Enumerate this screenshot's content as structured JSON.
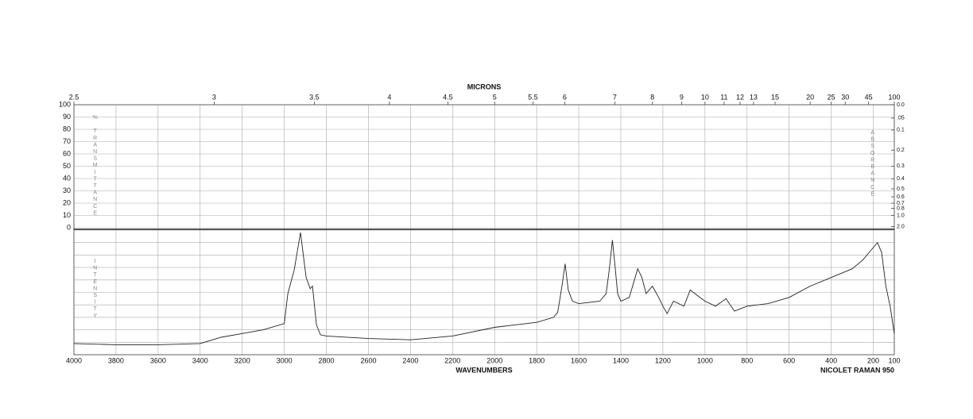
{
  "chart_data": {
    "type": "line",
    "top_axis_label": "MICRONS",
    "x_label": "WAVENUMBERS",
    "annotation": "NICOLET RAMAN 950",
    "y_label": "% TRANSMITTANCE",
    "y2_label": "ABSORBANCE",
    "xlim": [
      4000,
      100
    ],
    "xticks": [
      4000,
      3800,
      3600,
      3400,
      3200,
      3000,
      2800,
      2600,
      2400,
      2200,
      2000,
      1800,
      1600,
      1400,
      1200,
      1000,
      800,
      600,
      400,
      200,
      100
    ],
    "x2lim": [
      2.5,
      100
    ],
    "x2ticks": [
      2.5,
      3,
      3.5,
      4,
      4.5,
      5,
      5.5,
      6,
      7,
      8,
      9,
      10,
      11,
      12,
      13,
      15,
      20,
      25,
      30,
      45,
      100
    ],
    "ylim": [
      0,
      100
    ],
    "yticks": [
      0,
      10,
      20,
      30,
      40,
      50,
      60,
      70,
      80,
      90,
      100
    ],
    "y2lim": [
      0,
      2
    ],
    "y2ticks": [
      {
        "value": 0,
        "label": "0.0"
      },
      {
        "value": 0.05,
        "label": ".05"
      },
      0.1,
      0.2,
      0.3,
      0.4,
      0.5,
      0.6,
      0.7,
      0.8,
      {
        "value": 1,
        "label": "1.0"
      },
      {
        "value": 2,
        "label": "2.0"
      }
    ],
    "grid": true,
    "x": [
      4000,
      3800,
      3600,
      3400,
      3300,
      3200,
      3100,
      3000,
      2983,
      2953,
      2923,
      2896,
      2877,
      2866,
      2847,
      2828,
      2800,
      2600,
      2400,
      2200,
      2000,
      1800,
      1720,
      1700,
      1680,
      1665,
      1650,
      1630,
      1600,
      1500,
      1470,
      1455,
      1440,
      1430,
      1415,
      1400,
      1360,
      1320,
      1300,
      1280,
      1250,
      1220,
      1200,
      1180,
      1150,
      1100,
      1070,
      1040,
      1000,
      950,
      900,
      860,
      800,
      700,
      600,
      500,
      400,
      300,
      250,
      200,
      180,
      160,
      140,
      120,
      100
    ],
    "series": [
      {
        "name": "INTENSITY",
        "color": "#222222",
        "ylim": [
          0,
          100
        ],
        "values": [
          9,
          8,
          8,
          9,
          14,
          17,
          20,
          25,
          49,
          68,
          98,
          62,
          53,
          55,
          24,
          16,
          15,
          13,
          12,
          15,
          22,
          26,
          30,
          34,
          55,
          73,
          52,
          43,
          41,
          43,
          49,
          68,
          92,
          75,
          49,
          43,
          46,
          69,
          62,
          49,
          55,
          46,
          39,
          33,
          43,
          39,
          52,
          48,
          43,
          39,
          45,
          35,
          39,
          41,
          46,
          55,
          62,
          69,
          76,
          86,
          90,
          82,
          55,
          39,
          17
        ]
      }
    ]
  }
}
